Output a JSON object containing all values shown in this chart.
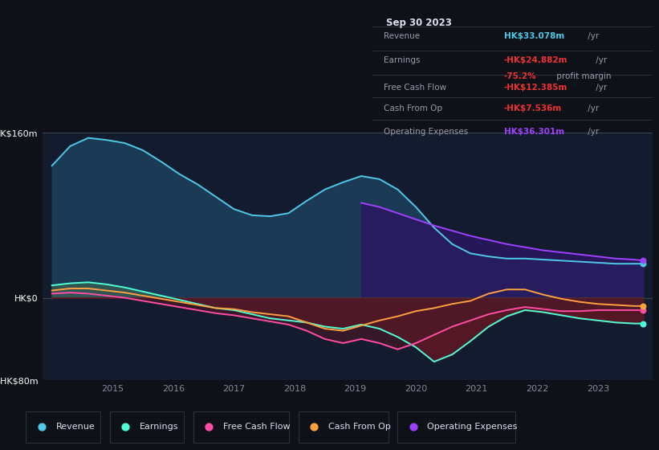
{
  "bg_color": "#0e1117",
  "chart_bg": "#131c2e",
  "years": [
    2014.0,
    2014.3,
    2014.6,
    2014.9,
    2015.2,
    2015.5,
    2015.8,
    2016.1,
    2016.4,
    2016.7,
    2017.0,
    2017.3,
    2017.6,
    2017.9,
    2018.2,
    2018.5,
    2018.8,
    2019.1,
    2019.4,
    2019.7,
    2020.0,
    2020.3,
    2020.6,
    2020.9,
    2021.2,
    2021.5,
    2021.8,
    2022.1,
    2022.4,
    2022.7,
    2023.0,
    2023.3,
    2023.6,
    2023.75
  ],
  "revenue": [
    128,
    147,
    155,
    153,
    150,
    143,
    132,
    120,
    110,
    98,
    86,
    80,
    79,
    82,
    94,
    105,
    112,
    118,
    115,
    105,
    88,
    68,
    52,
    43,
    40,
    38,
    38,
    37,
    36,
    35,
    34,
    33,
    33,
    33
  ],
  "earnings": [
    12,
    14,
    15,
    13,
    10,
    6,
    2,
    -2,
    -6,
    -10,
    -12,
    -16,
    -20,
    -22,
    -24,
    -28,
    -30,
    -26,
    -30,
    -38,
    -48,
    -62,
    -55,
    -42,
    -28,
    -18,
    -12,
    -14,
    -17,
    -20,
    -22,
    -24,
    -25,
    -25
  ],
  "fcf": [
    4,
    5,
    4,
    2,
    0,
    -3,
    -6,
    -9,
    -12,
    -15,
    -17,
    -20,
    -23,
    -26,
    -32,
    -40,
    -44,
    -40,
    -44,
    -50,
    -44,
    -36,
    -28,
    -22,
    -16,
    -12,
    -9,
    -11,
    -13,
    -13,
    -12,
    -12,
    -12,
    -12
  ],
  "cashfromop": [
    7,
    9,
    9,
    7,
    5,
    2,
    -1,
    -4,
    -7,
    -10,
    -11,
    -14,
    -16,
    -18,
    -24,
    -30,
    -32,
    -27,
    -22,
    -18,
    -13,
    -10,
    -6,
    -3,
    4,
    8,
    8,
    3,
    -1,
    -4,
    -6,
    -7,
    -8,
    -8
  ],
  "opex_years": [
    2019.1,
    2019.4,
    2019.7,
    2020.0,
    2020.3,
    2020.6,
    2020.9,
    2021.2,
    2021.5,
    2021.8,
    2022.1,
    2022.4,
    2022.7,
    2023.0,
    2023.3,
    2023.6,
    2023.75
  ],
  "opex_vals": [
    92,
    88,
    82,
    76,
    70,
    65,
    60,
    56,
    52,
    49,
    46,
    44,
    42,
    40,
    38,
    37,
    36
  ],
  "ylim": [
    -80,
    160
  ],
  "yticks": [
    160,
    0,
    -80
  ],
  "ytick_labels": [
    "HK$160m",
    "HK$0",
    "-HK$80m"
  ],
  "xticks": [
    2015,
    2016,
    2017,
    2018,
    2019,
    2020,
    2021,
    2022,
    2023
  ],
  "xlim": [
    2013.85,
    2023.9
  ],
  "revenue_line_color": "#4ec9e8",
  "revenue_fill_color": "#1b3a56",
  "earnings_line_color": "#4dffd4",
  "earnings_pos_fill": "#3a6050",
  "earnings_neg_fill": "#4a1520",
  "fcf_line_color": "#ff4da6",
  "cashfromop_line_color": "#ffa040",
  "opex_line_color": "#a040ff",
  "opex_fill_color": "#2a1860",
  "neg_fill_color": "#5a1825",
  "info_bg": "#060810",
  "info_border": "#444455",
  "info_title": "Sep 30 2023",
  "info_revenue_val": "HK$33.078m",
  "info_earnings_val": "-HK$24.882m",
  "info_margin_val": "-75.2%",
  "info_fcf_val": "-HK$12.385m",
  "info_cashfromop_val": "-HK$7.536m",
  "info_opex_val": "HK$36.301m",
  "legend_bg": "#111827",
  "legend_border": "#2a3040"
}
